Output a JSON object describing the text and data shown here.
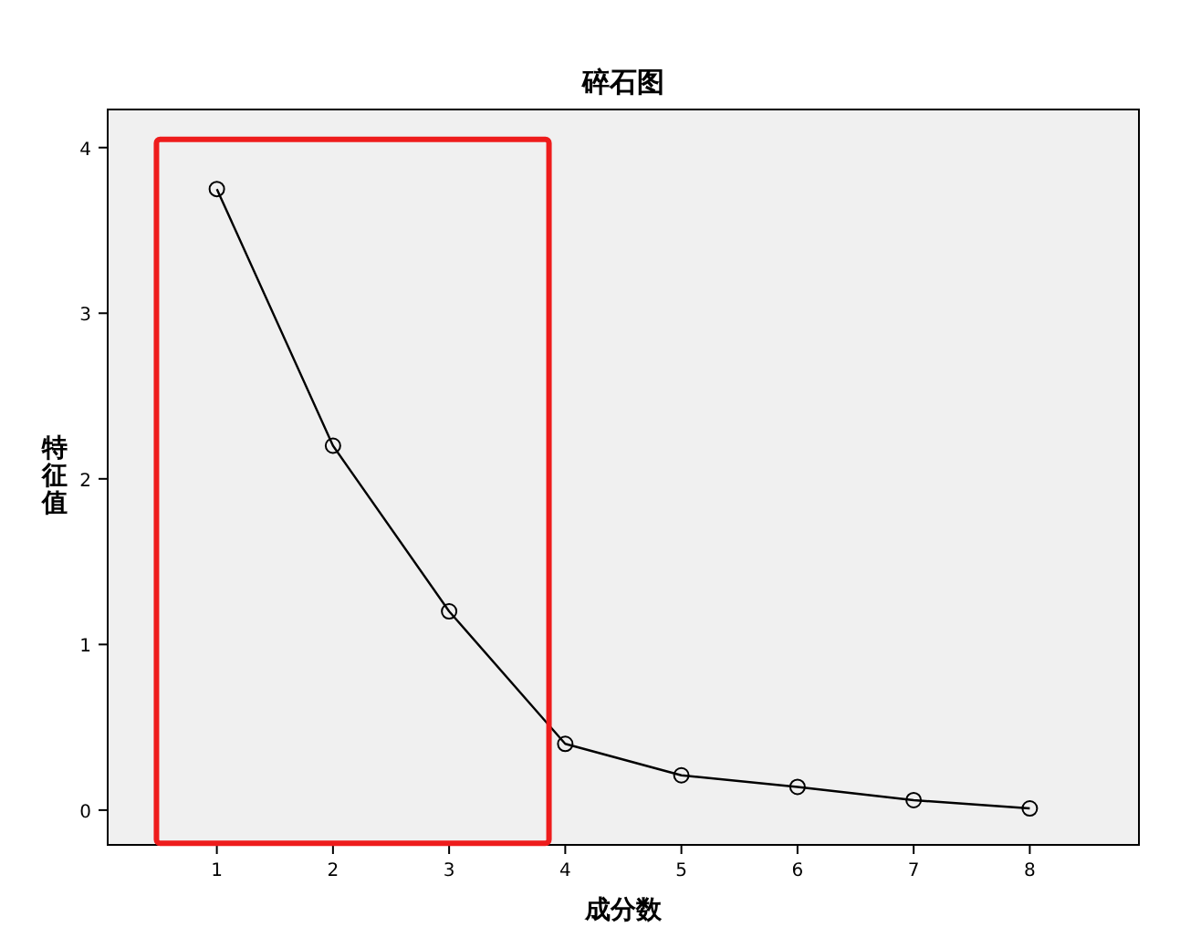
{
  "chart_data": {
    "type": "line",
    "title": "碎石图",
    "xlabel": "成分数",
    "ylabel": "特征值",
    "x": [
      1,
      2,
      3,
      4,
      5,
      6,
      7,
      8
    ],
    "series": [
      {
        "color": "#000000",
        "values": [
          3.75,
          2.2,
          1.2,
          0.4,
          0.21,
          0.14,
          0.06,
          0.01
        ]
      }
    ],
    "xlim": [
      0.06,
      8.94
    ],
    "xticks": [
      1,
      2,
      3,
      4,
      5,
      6,
      7,
      8
    ],
    "ylim": [
      -0.21,
      4.23
    ],
    "yticks": [
      0,
      1,
      2,
      3,
      4
    ],
    "marker": "circle",
    "grid": false
  }
}
